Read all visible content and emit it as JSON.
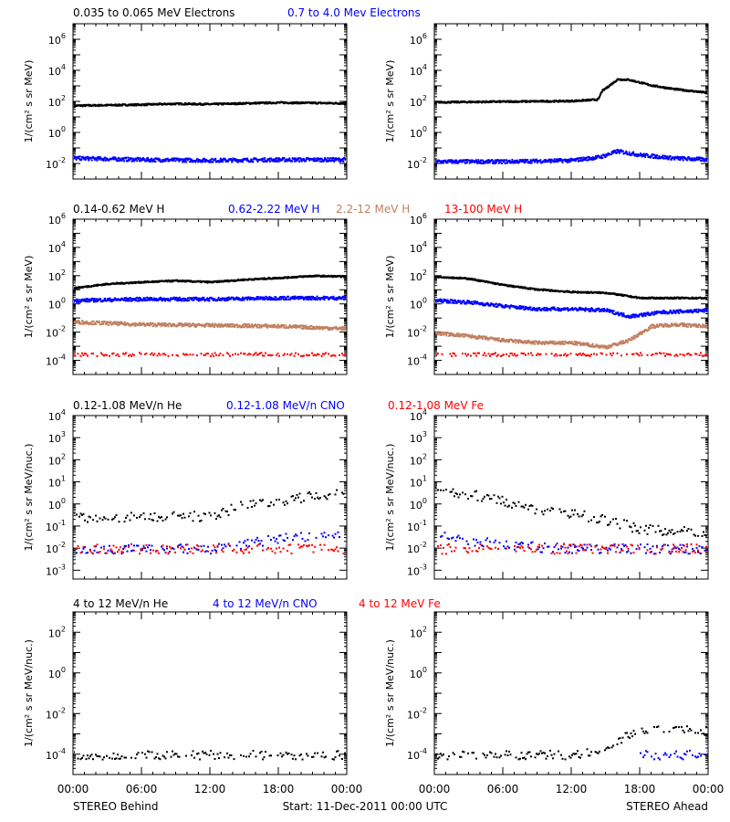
{
  "footer": {
    "left": "STEREO Behind",
    "center": "Start: 11-Dec-2011 00:00 UTC",
    "right": "STEREO Ahead"
  },
  "colors": {
    "black": "#000000",
    "blue": "#0000ff",
    "tan": "#c08060",
    "red": "#ff0000"
  },
  "chart_data": [
    {
      "type": "scatter",
      "row": 1,
      "legend": [
        {
          "text": "0.035 to 0.065 MeV Electrons",
          "color": "black"
        },
        {
          "text": "0.7 to 4.0 Mev Electrons",
          "color": "blue"
        }
      ],
      "ylabel": "1/(cm² s sr MeV)",
      "yscale": "log",
      "ylim_exp": [
        -3,
        7
      ],
      "ytick_labels": [
        {
          "base": "10",
          "exp": "-2",
          "value_exp": -2
        },
        {
          "base": "10",
          "exp": "0",
          "value_exp": 0
        },
        {
          "base": "10",
          "exp": "2",
          "value_exp": 2
        },
        {
          "base": "10",
          "exp": "4",
          "value_exp": 4
        },
        {
          "base": "10",
          "exp": "6",
          "value_exp": 6
        }
      ],
      "xlim_hours": [
        0,
        24
      ],
      "panels": [
        {
          "side": "STEREO Behind",
          "series": [
            {
              "color": "black",
              "points": [
                [
                  0,
                  60
                ],
                [
                  3,
                  65
                ],
                [
                  6,
                  70
                ],
                [
                  9,
                  80
                ],
                [
                  12,
                  75
                ],
                [
                  15,
                  85
                ],
                [
                  18,
                  95
                ],
                [
                  21,
                  90
                ],
                [
                  24,
                  85
                ]
              ]
            },
            {
              "color": "blue",
              "points": [
                [
                  0,
                  0.025
                ],
                [
                  6,
                  0.02
                ],
                [
                  12,
                  0.018
                ],
                [
                  18,
                  0.02
                ],
                [
                  24,
                  0.02
                ]
              ]
            }
          ]
        },
        {
          "side": "STEREO Ahead",
          "series": [
            {
              "color": "black",
              "points": [
                [
                  0,
                  100
                ],
                [
                  6,
                  110
                ],
                [
                  12,
                  120
                ],
                [
                  14.3,
                  150
                ],
                [
                  14.6,
                  500
                ],
                [
                  16,
                  3000
                ],
                [
                  17,
                  2800
                ],
                [
                  19,
                  1200
                ],
                [
                  21,
                  700
                ],
                [
                  24,
                  400
                ]
              ]
            },
            {
              "color": "blue",
              "points": [
                [
                  0,
                  0.015
                ],
                [
                  6,
                  0.015
                ],
                [
                  12,
                  0.018
                ],
                [
                  14.5,
                  0.03
                ],
                [
                  16,
                  0.07
                ],
                [
                  18,
                  0.04
                ],
                [
                  21,
                  0.025
                ],
                [
                  24,
                  0.02
                ]
              ]
            }
          ]
        }
      ]
    },
    {
      "type": "scatter",
      "row": 2,
      "legend": [
        {
          "text": "0.14-0.62 MeV H",
          "color": "black"
        },
        {
          "text": "0.62-2.22 MeV H",
          "color": "blue"
        },
        {
          "text": "2.2-12 MeV H",
          "color": "tan"
        },
        {
          "text": "13-100 MeV H",
          "color": "red"
        }
      ],
      "ylabel": "1/(cm² s sr MeV)",
      "yscale": "log",
      "ylim_exp": [
        -5,
        6
      ],
      "ytick_labels": [
        {
          "base": "10",
          "exp": "-4",
          "value_exp": -4
        },
        {
          "base": "10",
          "exp": "-2",
          "value_exp": -2
        },
        {
          "base": "10",
          "exp": "0",
          "value_exp": 0
        },
        {
          "base": "10",
          "exp": "2",
          "value_exp": 2
        },
        {
          "base": "10",
          "exp": "4",
          "value_exp": 4
        },
        {
          "base": "10",
          "exp": "6",
          "value_exp": 6
        }
      ],
      "xlim_hours": [
        0,
        24
      ],
      "panels": [
        {
          "side": "STEREO Behind",
          "series": [
            {
              "color": "black",
              "points": [
                [
                  0,
                  15
                ],
                [
                  3,
                  30
                ],
                [
                  6,
                  40
                ],
                [
                  9,
                  50
                ],
                [
                  12,
                  40
                ],
                [
                  15,
                  60
                ],
                [
                  18,
                  80
                ],
                [
                  21,
                  110
                ],
                [
                  24,
                  100
                ]
              ]
            },
            {
              "color": "blue",
              "points": [
                [
                  0,
                  2
                ],
                [
                  6,
                  2.5
                ],
                [
                  12,
                  2.5
                ],
                [
                  18,
                  3
                ],
                [
                  24,
                  3
                ]
              ]
            },
            {
              "color": "tan",
              "points": [
                [
                  0,
                  0.06
                ],
                [
                  6,
                  0.04
                ],
                [
                  12,
                  0.035
                ],
                [
                  18,
                  0.03
                ],
                [
                  24,
                  0.02
                ]
              ]
            },
            {
              "color": "red",
              "points": [
                [
                  0,
                  0.0003
                ],
                [
                  6,
                  0.0003
                ],
                [
                  12,
                  0.0003
                ],
                [
                  18,
                  0.0003
                ],
                [
                  24,
                  0.0003
                ]
              ]
            }
          ]
        },
        {
          "side": "STEREO Ahead",
          "series": [
            {
              "color": "black",
              "points": [
                [
                  0,
                  100
                ],
                [
                  3,
                  70
                ],
                [
                  6,
                  25
                ],
                [
                  9,
                  12
                ],
                [
                  12,
                  8
                ],
                [
                  15,
                  7
                ],
                [
                  18,
                  3
                ],
                [
                  21,
                  3
                ],
                [
                  24,
                  3
                ]
              ]
            },
            {
              "color": "blue",
              "points": [
                [
                  0,
                  2
                ],
                [
                  3,
                  1.5
                ],
                [
                  6,
                  0.8
                ],
                [
                  9,
                  0.5
                ],
                [
                  12,
                  0.5
                ],
                [
                  15,
                  0.4
                ],
                [
                  17,
                  0.15
                ],
                [
                  20,
                  0.3
                ],
                [
                  24,
                  0.4
                ]
              ]
            },
            {
              "color": "tan",
              "points": [
                [
                  0,
                  0.01
                ],
                [
                  3,
                  0.006
                ],
                [
                  6,
                  0.003
                ],
                [
                  9,
                  0.002
                ],
                [
                  12,
                  0.002
                ],
                [
                  15,
                  0.001
                ],
                [
                  17,
                  0.003
                ],
                [
                  19,
                  0.03
                ],
                [
                  21,
                  0.04
                ],
                [
                  24,
                  0.03
                ]
              ]
            },
            {
              "color": "red",
              "points": [
                [
                  0,
                  0.0003
                ],
                [
                  6,
                  0.0003
                ],
                [
                  12,
                  0.0003
                ],
                [
                  18,
                  0.0003
                ],
                [
                  24,
                  0.0003
                ]
              ]
            }
          ]
        }
      ]
    },
    {
      "type": "scatter",
      "row": 3,
      "legend": [
        {
          "text": "0.12-1.08 MeV/n He",
          "color": "black"
        },
        {
          "text": "0.12-1.08 MeV/n CNO",
          "color": "blue"
        },
        {
          "text": "0.12-1.08 MeV Fe",
          "color": "red"
        }
      ],
      "ylabel": "1/(cm² s sr MeV/nuc.)",
      "yscale": "log",
      "ylim_exp": [
        -3.4,
        4
      ],
      "ytick_labels": [
        {
          "base": "10",
          "exp": "-3",
          "value_exp": -3
        },
        {
          "base": "10",
          "exp": "-2",
          "value_exp": -2
        },
        {
          "base": "10",
          "exp": "-1",
          "value_exp": -1
        },
        {
          "base": "10",
          "exp": "0",
          "value_exp": 0
        },
        {
          "base": "10",
          "exp": "1",
          "value_exp": 1
        },
        {
          "base": "10",
          "exp": "2",
          "value_exp": 2
        },
        {
          "base": "10",
          "exp": "3",
          "value_exp": 3
        },
        {
          "base": "10",
          "exp": "4",
          "value_exp": 4
        }
      ],
      "xlim_hours": [
        0,
        24
      ],
      "panels": [
        {
          "side": "STEREO Behind",
          "series": [
            {
              "color": "black",
              "points": [
                [
                  0,
                  0.3
                ],
                [
                  3,
                  0.25
                ],
                [
                  6,
                  0.3
                ],
                [
                  9,
                  0.3
                ],
                [
                  12,
                  0.3
                ],
                [
                  15,
                  1.0
                ],
                [
                  18,
                  1.5
                ],
                [
                  21,
                  2.5
                ],
                [
                  24,
                  3
                ]
              ]
            },
            {
              "color": "blue",
              "points": [
                [
                  0,
                  0.01
                ],
                [
                  6,
                  0.01
                ],
                [
                  12,
                  0.01
                ],
                [
                  18,
                  0.03
                ],
                [
                  24,
                  0.04
                ]
              ]
            },
            {
              "color": "red",
              "points": [
                [
                  0,
                  0.01
                ],
                [
                  6,
                  0.01
                ],
                [
                  12,
                  0.01
                ],
                [
                  18,
                  0.01
                ],
                [
                  24,
                  0.01
                ]
              ]
            }
          ]
        },
        {
          "side": "STEREO Ahead",
          "series": [
            {
              "color": "black",
              "points": [
                [
                  0,
                  5
                ],
                [
                  3,
                  3
                ],
                [
                  6,
                  1.5
                ],
                [
                  9,
                  0.6
                ],
                [
                  12,
                  0.4
                ],
                [
                  15,
                  0.2
                ],
                [
                  18,
                  0.08
                ],
                [
                  21,
                  0.06
                ],
                [
                  24,
                  0.06
                ]
              ]
            },
            {
              "color": "blue",
              "points": [
                [
                  0,
                  0.04
                ],
                [
                  6,
                  0.015
                ],
                [
                  12,
                  0.01
                ],
                [
                  18,
                  0.01
                ],
                [
                  24,
                  0.01
                ]
              ]
            },
            {
              "color": "red",
              "points": [
                [
                  0,
                  0.01
                ],
                [
                  6,
                  0.01
                ],
                [
                  12,
                  0.01
                ],
                [
                  18,
                  0.01
                ],
                [
                  24,
                  0.01
                ]
              ]
            }
          ]
        }
      ]
    },
    {
      "type": "scatter",
      "row": 4,
      "legend": [
        {
          "text": "4 to 12 MeV/n He",
          "color": "black"
        },
        {
          "text": "4 to 12 MeV/n CNO",
          "color": "blue"
        },
        {
          "text": "4 to 12 MeV Fe",
          "color": "red"
        }
      ],
      "ylabel": "1/(cm² s sr MeV/nuc.)",
      "yscale": "log",
      "ylim_exp": [
        -5,
        3
      ],
      "ytick_labels": [
        {
          "base": "10",
          "exp": "-4",
          "value_exp": -4
        },
        {
          "base": "10",
          "exp": "-2",
          "value_exp": -2
        },
        {
          "base": "10",
          "exp": "0",
          "value_exp": 0
        },
        {
          "base": "10",
          "exp": "2",
          "value_exp": 2
        }
      ],
      "xtick_labels": [
        "00:00",
        "06:00",
        "12:00",
        "18:00",
        "00:00"
      ],
      "xlim_hours": [
        0,
        24
      ],
      "panels": [
        {
          "side": "STEREO Behind",
          "series": [
            {
              "color": "black",
              "points": [
                [
                  0,
                  0.0001
                ],
                [
                  6,
                  0.0001
                ],
                [
                  12,
                  0.0001
                ],
                [
                  18,
                  0.0001
                ],
                [
                  24,
                  0.0001
                ]
              ]
            }
          ]
        },
        {
          "side": "STEREO Ahead",
          "series": [
            {
              "color": "black",
              "points": [
                [
                  0,
                  0.0001
                ],
                [
                  12,
                  0.0001
                ],
                [
                  15,
                  0.0002
                ],
                [
                  16,
                  0.0004
                ],
                [
                  17,
                  0.001
                ],
                [
                  18,
                  0.0015
                ],
                [
                  21,
                  0.002
                ],
                [
                  24,
                  0.0015
                ]
              ]
            },
            {
              "color": "blue",
              "points": [
                [
                  18,
                  0.0001
                ],
                [
                  21,
                  0.0001
                ],
                [
                  24,
                  0.0001
                ]
              ]
            }
          ]
        }
      ]
    }
  ]
}
